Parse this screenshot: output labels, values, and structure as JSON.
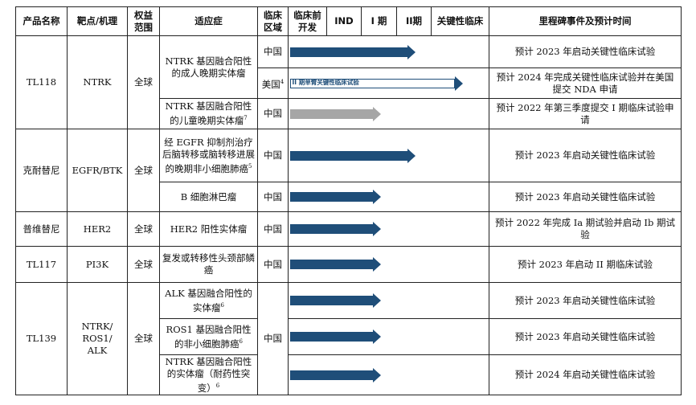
{
  "headers": {
    "product": "产品名称",
    "target": "靶点/机理",
    "rights": "权益\n范围",
    "indication": "适应症",
    "region": "临床\n区域",
    "preclinical": "临床前\n开发",
    "ind": "IND",
    "phase1": "I 期",
    "phase2": "II期",
    "pivotal": "关键性临床",
    "milestone": "里程碑事件及预计时间"
  },
  "products": [
    {
      "name": "TL118",
      "target": "NTRK",
      "rights": "全球",
      "rows": [
        {
          "indication": "NTRK 基因融合阳性的成人晚期实体瘤",
          "region": "中国",
          "region_note": "",
          "bar_style": "dark",
          "bar_label": "",
          "progress_stage": "II期",
          "milestone": "预计 2023 年启动关键性临床试验"
        },
        {
          "indication": "",
          "region": "美国",
          "region_note": "4",
          "bar_style": "outline",
          "bar_label": "II 期单臂关键性临床试验",
          "progress_stage": "关键性临床",
          "milestone": "预计 2024 年完成关键性临床试验并在美国提交 NDA 申请"
        },
        {
          "indication": "NTRK 基因融合阳性的儿童晚期实体瘤",
          "indication_note": "7",
          "region": "中国",
          "region_note": "",
          "bar_style": "gray",
          "bar_label": "",
          "progress_stage": "I 期",
          "milestone": "预计 2022 年第三季度提交 I 期临床试验申请"
        }
      ]
    },
    {
      "name": "克耐替尼",
      "target": "EGFR/BTK",
      "rights": "全球",
      "rows": [
        {
          "indication": "经 EGFR 抑制剂治疗后脑转移或脑转移进展的晚期非小细胞肺癌",
          "indication_note": "5",
          "region": "中国",
          "bar_style": "dark",
          "bar_label": "",
          "progress_stage": "II期",
          "milestone": "预计 2023 年启动关键性临床试验"
        },
        {
          "indication": "B 细胞淋巴瘤",
          "region": "中国",
          "bar_style": "dark",
          "bar_label": "",
          "progress_stage": "I 期",
          "milestone": "预计 2023 年启动关键性临床试验"
        }
      ]
    },
    {
      "name": "普维替尼",
      "target": "HER2",
      "rights": "全球",
      "rows": [
        {
          "indication": "HER2 阳性实体瘤",
          "region": "中国",
          "bar_style": "dark",
          "bar_label": "",
          "progress_stage": "I 期",
          "milestone": "预计 2022 年完成 Ia 期试验并启动 Ib 期试验"
        }
      ]
    },
    {
      "name": "TL117",
      "target": "PI3K",
      "rights": "全球",
      "rows": [
        {
          "indication": "复发或转移性头颈部鳞癌",
          "region": "中国",
          "bar_style": "dark",
          "bar_label": "",
          "progress_stage": "I 期",
          "milestone": "预计 2023 年启动 II 期临床试验"
        }
      ]
    },
    {
      "name": "TL139",
      "target": "NTRK/\nROS1/\nALK",
      "rights": "全球",
      "region_shared": "中国",
      "rows": [
        {
          "indication": "ALK 基因融合阳性的实体瘤",
          "indication_note": "6",
          "bar_style": "dark",
          "bar_label": "",
          "progress_stage": "I 期",
          "milestone": "预计 2023 年启动关键性临床试验"
        },
        {
          "indication": "ROS1 基因融合阳性的非小细胞肺癌",
          "indication_note": "6",
          "bar_style": "dark",
          "bar_label": "",
          "progress_stage": "I 期",
          "milestone": "预计 2023 年启动关键性临床试验"
        },
        {
          "indication": "NTRK 基因融合阳性的实体瘤（耐药性突变）",
          "indication_note": "6",
          "bar_style": "dark",
          "bar_label": "",
          "progress_stage": "I 期",
          "milestone": "预计 2024 年启动关键性临床试验"
        }
      ]
    }
  ],
  "colors": {
    "bar_dark": "#1f4e79",
    "bar_gray": "#a6a6a6",
    "border": "#222222"
  }
}
